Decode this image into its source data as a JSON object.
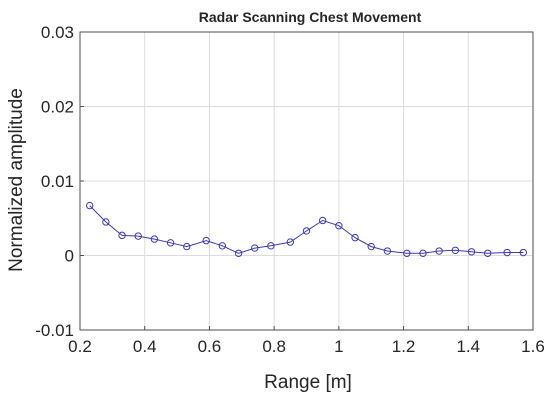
{
  "chart_data": {
    "type": "line",
    "title": "Radar Scanning Chest Movement",
    "xlabel": "Range [m]",
    "ylabel": "Normalized amplitude",
    "xlim": [
      0.2,
      1.6
    ],
    "ylim": [
      -0.01,
      0.03
    ],
    "xticks": [
      "0.2",
      "0.4",
      "0.6",
      "0.8",
      "1",
      "1.2",
      "1.4",
      "1.6"
    ],
    "yticks": [
      "-0.01",
      "0",
      "0.01",
      "0.02",
      "0.03"
    ],
    "grid": true,
    "marker": "circle",
    "colors": {
      "series": "#3b3bb0",
      "grid": "#dcdcdc",
      "axes": "#4d4d4d"
    },
    "series": [
      {
        "x": [
          0.23,
          0.28,
          0.33,
          0.38,
          0.43,
          0.48,
          0.53,
          0.59,
          0.64,
          0.69,
          0.74,
          0.79,
          0.85,
          0.9,
          0.95,
          1.0,
          1.05,
          1.1,
          1.15,
          1.21,
          1.26,
          1.31,
          1.36,
          1.41,
          1.46,
          1.52,
          1.57
        ],
        "values": [
          0.0067,
          0.0045,
          0.0027,
          0.0026,
          0.0022,
          0.0017,
          0.0012,
          0.002,
          0.0013,
          0.0003,
          0.001,
          0.0013,
          0.0018,
          0.0033,
          0.0047,
          0.004,
          0.0024,
          0.0012,
          0.0006,
          0.0003,
          0.0003,
          0.0006,
          0.0007,
          0.0005,
          0.0003,
          0.0004,
          0.0004
        ]
      }
    ]
  }
}
